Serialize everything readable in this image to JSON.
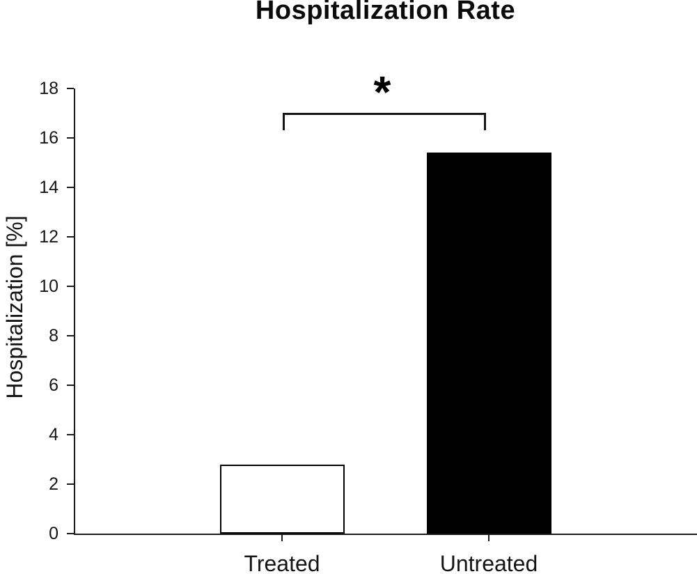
{
  "chart_data": {
    "type": "bar",
    "title": "Hospitalization Rate",
    "ylabel": "Hospitalization [%]",
    "xlabel": "",
    "categories": [
      "Treated",
      "Untreated"
    ],
    "values": [
      2.8,
      15.4
    ],
    "ylim": [
      0,
      18
    ],
    "yticks": [
      0,
      2,
      4,
      6,
      8,
      10,
      12,
      14,
      16,
      18
    ],
    "grid": false,
    "legend": "none",
    "bar_styles": [
      {
        "fill": "#ffffff",
        "border": "#000000"
      },
      {
        "fill": "#000000",
        "border": "#000000"
      }
    ],
    "annotation": {
      "type": "significance-bracket",
      "label": "*",
      "between": [
        "Treated",
        "Untreated"
      ]
    }
  },
  "colors": {
    "background": "#ffffff",
    "axis": "#1a1a1a",
    "text": "#141414"
  }
}
